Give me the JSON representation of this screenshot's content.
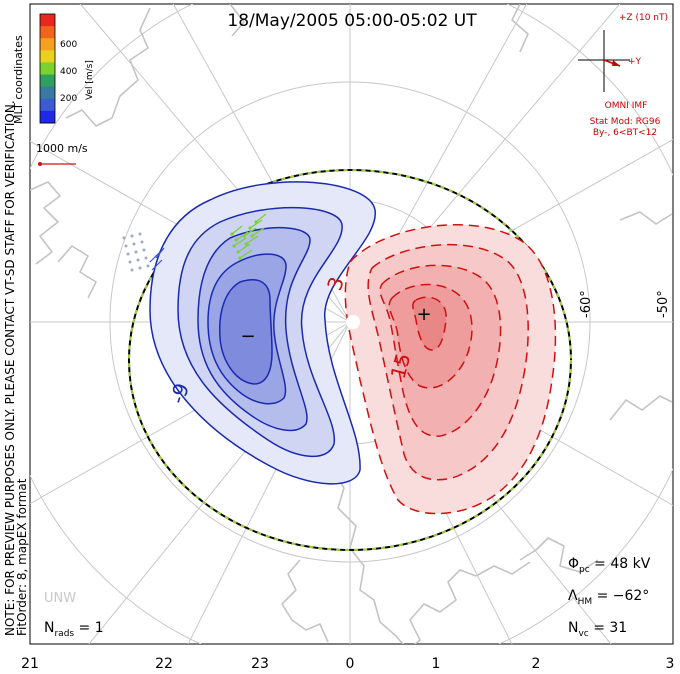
{
  "title": "18/May/2005 05:00-05:02 UT",
  "side_note_line1": "NOTE: FOR PREVIEW PURPOSES ONLY. PLEASE CONTACT VT-SD STAFF FOR VERIFICATION.",
  "side_note_line2": "FitOrder: 8, mapEX format",
  "coordinates_label": "MLT coordinates",
  "colorbar": {
    "label": "Vel [m/s]",
    "ticks": [
      "600",
      "400",
      "200"
    ],
    "colors": [
      "#e8281c",
      "#f0641e",
      "#f5a020",
      "#e8d21e",
      "#7ad230",
      "#2fa060",
      "#3a7aa0",
      "#3c5ad2",
      "#1e28e6"
    ]
  },
  "reference_vector": "1000 m/s",
  "imf": {
    "z_label": "+Z (10 nT)",
    "y_label": "+Y",
    "source": "OMNI IMF",
    "model": "Stat Mod: RG96",
    "condition": "By-, 6<BT<12"
  },
  "latitude_labels": [
    "-60°",
    "-50°"
  ],
  "mlt_labels": [
    "21",
    "22",
    "23",
    "0",
    "1",
    "2",
    "3"
  ],
  "contour_labels": {
    "negative": "-9",
    "positive_low": "3",
    "positive_high": "15"
  },
  "extrema": {
    "min": "−",
    "max": "+"
  },
  "station": "UNW",
  "stats": {
    "phi_pc": "Φpc  =  48 kV",
    "lambda_hm": "ΛHM  =  −62°",
    "n_vc": "Nvc  =  31",
    "n_rads": "Nrads  =  1"
  },
  "colors": {
    "negative_contour": "#1a2ab0",
    "positive_contour": "#d01010",
    "boundary_dash": "#9ad23a",
    "grid": "#c8c8c8",
    "coastline": "#c4c4c4",
    "imf_text": "#cc0000"
  }
}
